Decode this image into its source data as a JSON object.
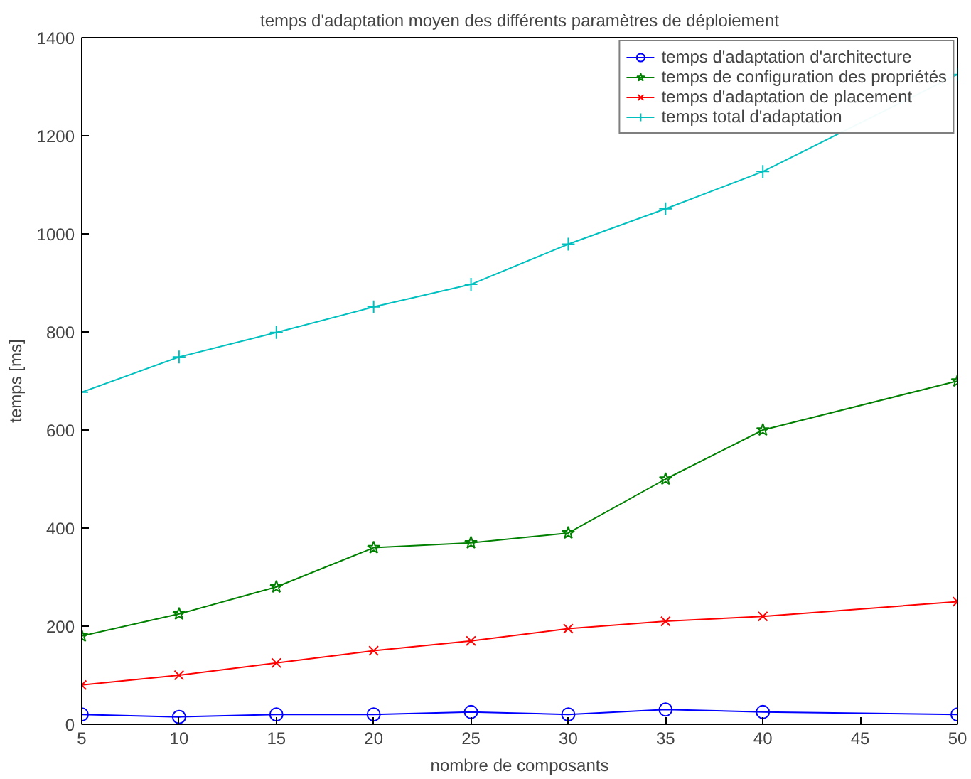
{
  "chart_data": {
    "type": "line",
    "title": "temps d'adaptation moyen des différents paramètres de déploiement",
    "xlabel": "nombre de composants",
    "ylabel": "temps [ms]",
    "x": [
      5,
      10,
      15,
      20,
      25,
      30,
      35,
      40,
      50
    ],
    "series": [
      {
        "name": "temps d'adaptation d'architecture",
        "color": "#0000ff",
        "marker": "circle",
        "values": [
          20,
          15,
          20,
          20,
          25,
          20,
          30,
          25,
          20
        ]
      },
      {
        "name": "temps de configuration des propriétés",
        "color": "#008000",
        "marker": "star",
        "values": [
          180,
          225,
          280,
          360,
          370,
          390,
          500,
          600,
          700
        ]
      },
      {
        "name": "temps d'adaptation de placement",
        "color": "#ff0000",
        "marker": "x",
        "values": [
          80,
          100,
          125,
          150,
          170,
          195,
          210,
          220,
          250
        ]
      },
      {
        "name": "temps total d'adaptation",
        "color": "#00bfbf",
        "marker": "cross",
        "values": [
          677,
          749,
          799,
          851,
          897,
          979,
          1051,
          1127,
          1325
        ]
      }
    ],
    "xlim": [
      5,
      50
    ],
    "ylim": [
      0,
      1400
    ],
    "xticks": [
      5,
      10,
      15,
      20,
      25,
      30,
      35,
      40,
      45,
      50
    ],
    "yticks": [
      0,
      200,
      400,
      600,
      800,
      1000,
      1200,
      1400
    ],
    "grid": false,
    "legend": "top right",
    "line_style": "solid"
  }
}
